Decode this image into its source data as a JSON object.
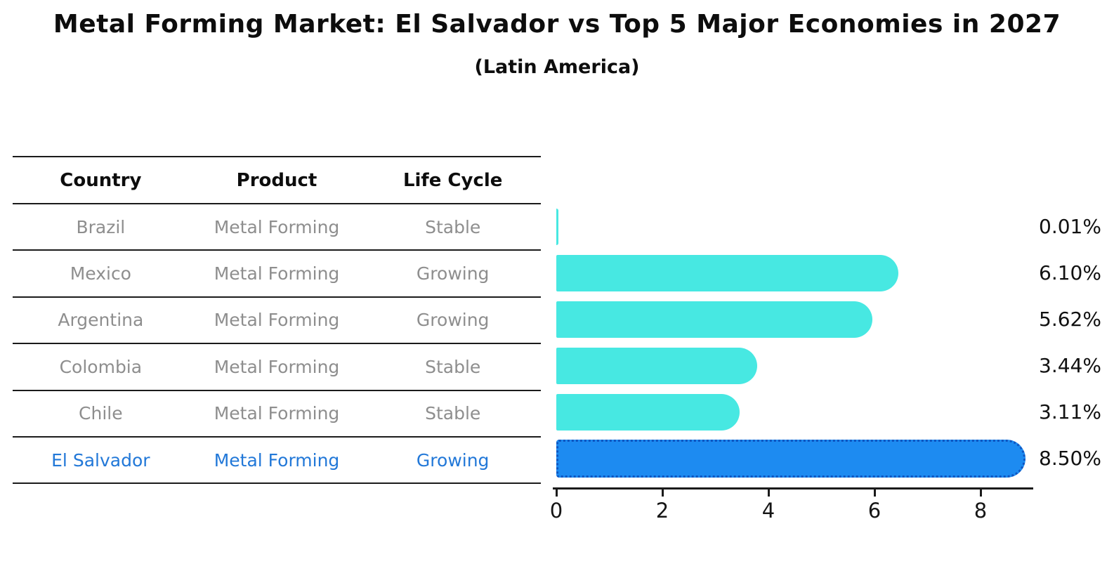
{
  "title": "Metal Forming Market: El Salvador vs Top 5 Major Economies in 2027",
  "subtitle": "(Latin America)",
  "table": {
    "headers": [
      "Country",
      "Product",
      "Life Cycle"
    ],
    "rows": [
      {
        "country": "Brazil",
        "product": "Metal Forming",
        "life_cycle": "Stable",
        "highlight": false
      },
      {
        "country": "Mexico",
        "product": "Metal Forming",
        "life_cycle": "Growing",
        "highlight": false
      },
      {
        "country": "Argentina",
        "product": "Metal Forming",
        "life_cycle": "Growing",
        "highlight": false
      },
      {
        "country": "Colombia",
        "product": "Metal Forming",
        "life_cycle": "Stable",
        "highlight": false
      },
      {
        "country": "Chile",
        "product": "Metal Forming",
        "life_cycle": "Stable",
        "highlight": false
      },
      {
        "country": "El Salvador",
        "product": "Metal Forming",
        "life_cycle": "Growing",
        "highlight": true
      }
    ]
  },
  "chart_data": {
    "type": "bar",
    "orientation": "horizontal",
    "categories": [
      "Brazil",
      "Mexico",
      "Argentina",
      "Colombia",
      "Chile",
      "El Salvador"
    ],
    "values": [
      0.01,
      6.1,
      5.62,
      3.44,
      3.11,
      8.5
    ],
    "value_labels": [
      "0.01%",
      "6.10%",
      "5.62%",
      "3.44%",
      "3.11%",
      "8.50%"
    ],
    "x_ticks": [
      0,
      2,
      4,
      6,
      8
    ],
    "xlim": [
      0,
      8.95
    ],
    "grid": false,
    "legend": "none",
    "bar_color": "#47e8e2",
    "highlight_index": 5,
    "highlight_color": "#1d8bf1",
    "highlight_edge_color": "#0f55c0",
    "highlight_edge_style": "dotted"
  },
  "colors": {
    "background": "#ffffff",
    "table_text_gray": "#8e8e8e",
    "highlight_text_blue": "#2278d8",
    "line_black": "#1b1b1b",
    "label_black": "#111111"
  }
}
